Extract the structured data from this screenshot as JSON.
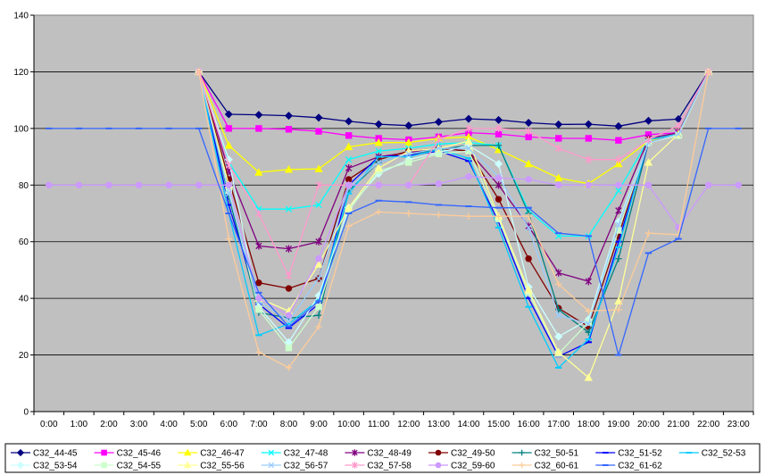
{
  "chart_data": {
    "type": "line",
    "title": "",
    "xlabel": "",
    "ylabel": "",
    "ylim": [
      0,
      140
    ],
    "yticks": [
      0,
      20,
      40,
      60,
      80,
      100,
      120,
      140
    ],
    "categories": [
      "0:00",
      "1:00",
      "2:00",
      "3:00",
      "4:00",
      "5:00",
      "6:00",
      "7:00",
      "8:00",
      "9:00",
      "10:00",
      "11:00",
      "12:00",
      "13:00",
      "14:00",
      "15:00",
      "16:00",
      "17:00",
      "18:00",
      "19:00",
      "20:00",
      "21:00",
      "22:00",
      "23:00"
    ],
    "grid": "horizontal",
    "plot_background": "#c0c0c0",
    "legend_position": "bottom",
    "series": [
      {
        "name": "C32_44-45",
        "color": "#000080",
        "marker": "diamond",
        "values": [
          null,
          null,
          null,
          null,
          null,
          120,
          105,
          104.8,
          104.5,
          103.8,
          102.5,
          101.5,
          101,
          102.3,
          103.4,
          103,
          102,
          101.4,
          101.5,
          100.8,
          102.7,
          103.3,
          120,
          null
        ]
      },
      {
        "name": "C32_45-46",
        "color": "#ff00ff",
        "marker": "square",
        "values": [
          null,
          null,
          null,
          null,
          null,
          120,
          100,
          100,
          99.7,
          99,
          97.5,
          96.5,
          96,
          97,
          98.5,
          98,
          97,
          96.5,
          96.5,
          95.8,
          97.8,
          98.5,
          120,
          null
        ]
      },
      {
        "name": "C32_46-47",
        "color": "#ffff00",
        "marker": "triangle",
        "values": [
          null,
          null,
          null,
          null,
          null,
          120,
          94,
          84.5,
          85.5,
          85.7,
          93.5,
          95,
          95,
          96.5,
          97,
          92.5,
          87.5,
          82.5,
          80.5,
          87.5,
          95.5,
          98.5,
          120,
          null
        ]
      },
      {
        "name": "C32_47-48",
        "color": "#00ffff",
        "marker": "x",
        "values": [
          null,
          null,
          null,
          null,
          null,
          120,
          88,
          71.5,
          71.5,
          73,
          89,
          92,
          93,
          94.5,
          95,
          94,
          71,
          62,
          62,
          78,
          96,
          98,
          120,
          null
        ]
      },
      {
        "name": "C32_48-49",
        "color": "#800080",
        "marker": "star",
        "values": [
          null,
          null,
          null,
          null,
          null,
          120,
          85,
          58.5,
          57.5,
          60,
          86,
          90,
          91.5,
          93,
          92,
          80,
          65.5,
          49,
          46,
          71,
          96.5,
          98.5,
          120,
          null
        ]
      },
      {
        "name": "C32_49-50",
        "color": "#800000",
        "marker": "circle",
        "values": [
          null,
          null,
          null,
          null,
          null,
          120,
          82,
          45.5,
          43.5,
          47,
          82,
          89,
          92,
          93,
          92,
          75,
          54,
          36.5,
          30,
          62,
          96,
          98,
          120,
          null
        ]
      },
      {
        "name": "C32_50-51",
        "color": "#008080",
        "marker": "plus",
        "values": [
          null,
          null,
          null,
          null,
          null,
          120,
          76,
          35,
          33,
          34,
          78,
          88,
          91,
          92.5,
          94,
          94,
          70,
          36,
          28,
          54,
          95,
          98,
          120,
          null
        ]
      },
      {
        "name": "C32_51-52",
        "color": "#0000ff",
        "marker": "dash",
        "values": [
          null,
          null,
          null,
          null,
          null,
          120,
          73,
          38,
          29.5,
          38,
          80,
          90,
          90.5,
          92,
          88.5,
          67,
          40,
          19.5,
          24.5,
          60,
          95,
          98,
          120,
          null
        ]
      },
      {
        "name": "C32_52-53",
        "color": "#00ccff",
        "marker": "dash",
        "values": [
          null,
          null,
          null,
          null,
          null,
          120,
          70,
          27,
          31,
          39.5,
          77,
          90,
          90,
          92.5,
          89.5,
          65,
          37,
          15.5,
          25.5,
          58,
          96,
          98,
          120,
          null
        ]
      },
      {
        "name": "C32_53-54",
        "color": "#ccffff",
        "marker": "diamond",
        "values": [
          null,
          null,
          null,
          null,
          null,
          120,
          89,
          37,
          24.5,
          41,
          72,
          84,
          89,
          91.5,
          94,
          87.5,
          44,
          26.5,
          32.5,
          67,
          95,
          97.5,
          120,
          null
        ]
      },
      {
        "name": "C32_54-55",
        "color": "#ccffcc",
        "marker": "square",
        "values": [
          null,
          null,
          null,
          null,
          null,
          120,
          78,
          36,
          22.5,
          37,
          71,
          85,
          88,
          91,
          92,
          68,
          42,
          20.5,
          31.5,
          64,
          95,
          97.5,
          120,
          null
        ]
      },
      {
        "name": "C32_55-56",
        "color": "#ffff99",
        "marker": "triangle",
        "values": [
          null,
          null,
          null,
          null,
          null,
          120,
          80,
          40,
          35.5,
          52,
          72,
          86,
          92,
          93,
          95.5,
          69,
          43,
          21,
          12,
          39,
          88,
          98,
          120,
          null
        ]
      },
      {
        "name": "C32_56-57",
        "color": "#99ccff",
        "marker": "x",
        "values": [
          null,
          null,
          null,
          null,
          null,
          120,
          77,
          39,
          32,
          47,
          79,
          88,
          91,
          93,
          93,
          83,
          65,
          34,
          31,
          66,
          95,
          98,
          120,
          null
        ]
      },
      {
        "name": "C32_57-58",
        "color": "#ff99cc",
        "marker": "star",
        "values": [
          null,
          null,
          null,
          null,
          null,
          120,
          87,
          70,
          48,
          80,
          80,
          80,
          80,
          96,
          100,
          100,
          99,
          93,
          89,
          89,
          96,
          101,
          120,
          null
        ]
      },
      {
        "name": "C32_59-60",
        "color": "#cc99ff",
        "marker": "circle",
        "values": [
          80,
          80,
          80,
          80,
          80,
          80,
          80,
          40,
          34,
          54,
          80,
          80,
          80,
          80.5,
          83,
          82.5,
          82,
          80,
          80,
          80,
          80,
          65,
          80,
          80
        ]
      },
      {
        "name": "C32_60-61",
        "color": "#ffcc99",
        "marker": "plus",
        "values": [
          null,
          null,
          null,
          null,
          null,
          120,
          61,
          21,
          15.5,
          30,
          65.5,
          70.5,
          70,
          69.5,
          69,
          69,
          69,
          45,
          35.5,
          36,
          63,
          62.5,
          120,
          null
        ]
      },
      {
        "name": "C32_61-62",
        "color": "#3366ff",
        "marker": "dash",
        "values": [
          100,
          100,
          100,
          100,
          100,
          100,
          70,
          42,
          30,
          39,
          70,
          74.5,
          74,
          73,
          72.5,
          72,
          72,
          63,
          62,
          20,
          56,
          61,
          100,
          100
        ]
      }
    ]
  }
}
